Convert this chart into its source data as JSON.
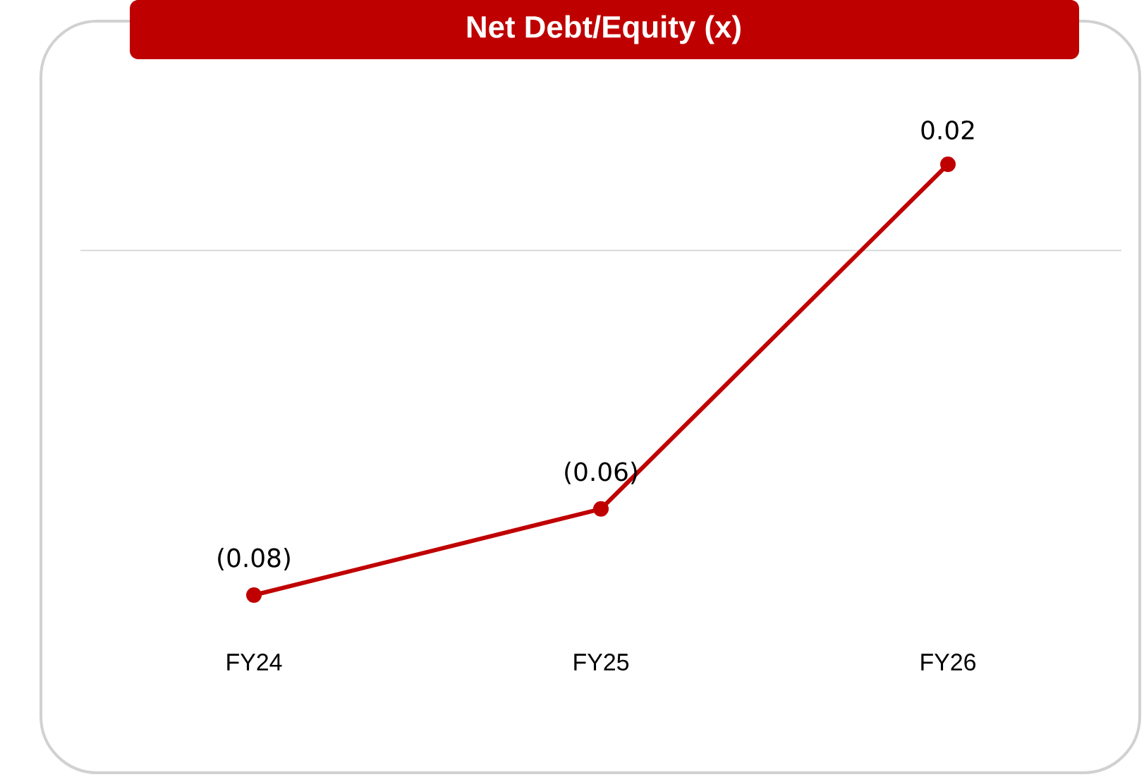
{
  "chart_data": {
    "type": "line",
    "title": "Net Debt/Equity (x)",
    "categories": [
      "FY24",
      "FY25",
      "FY26"
    ],
    "series": [
      {
        "color": "#c00000",
        "values": [
          -0.08,
          -0.06,
          0.02
        ],
        "value_labels": [
          "(0.08)",
          "(0.06)",
          "0.02"
        ]
      }
    ],
    "ref_lines": [
      {
        "axis": "y",
        "value": 0,
        "color": "#d9d9d9"
      }
    ],
    "marker": "circle",
    "line_style": "solid"
  }
}
